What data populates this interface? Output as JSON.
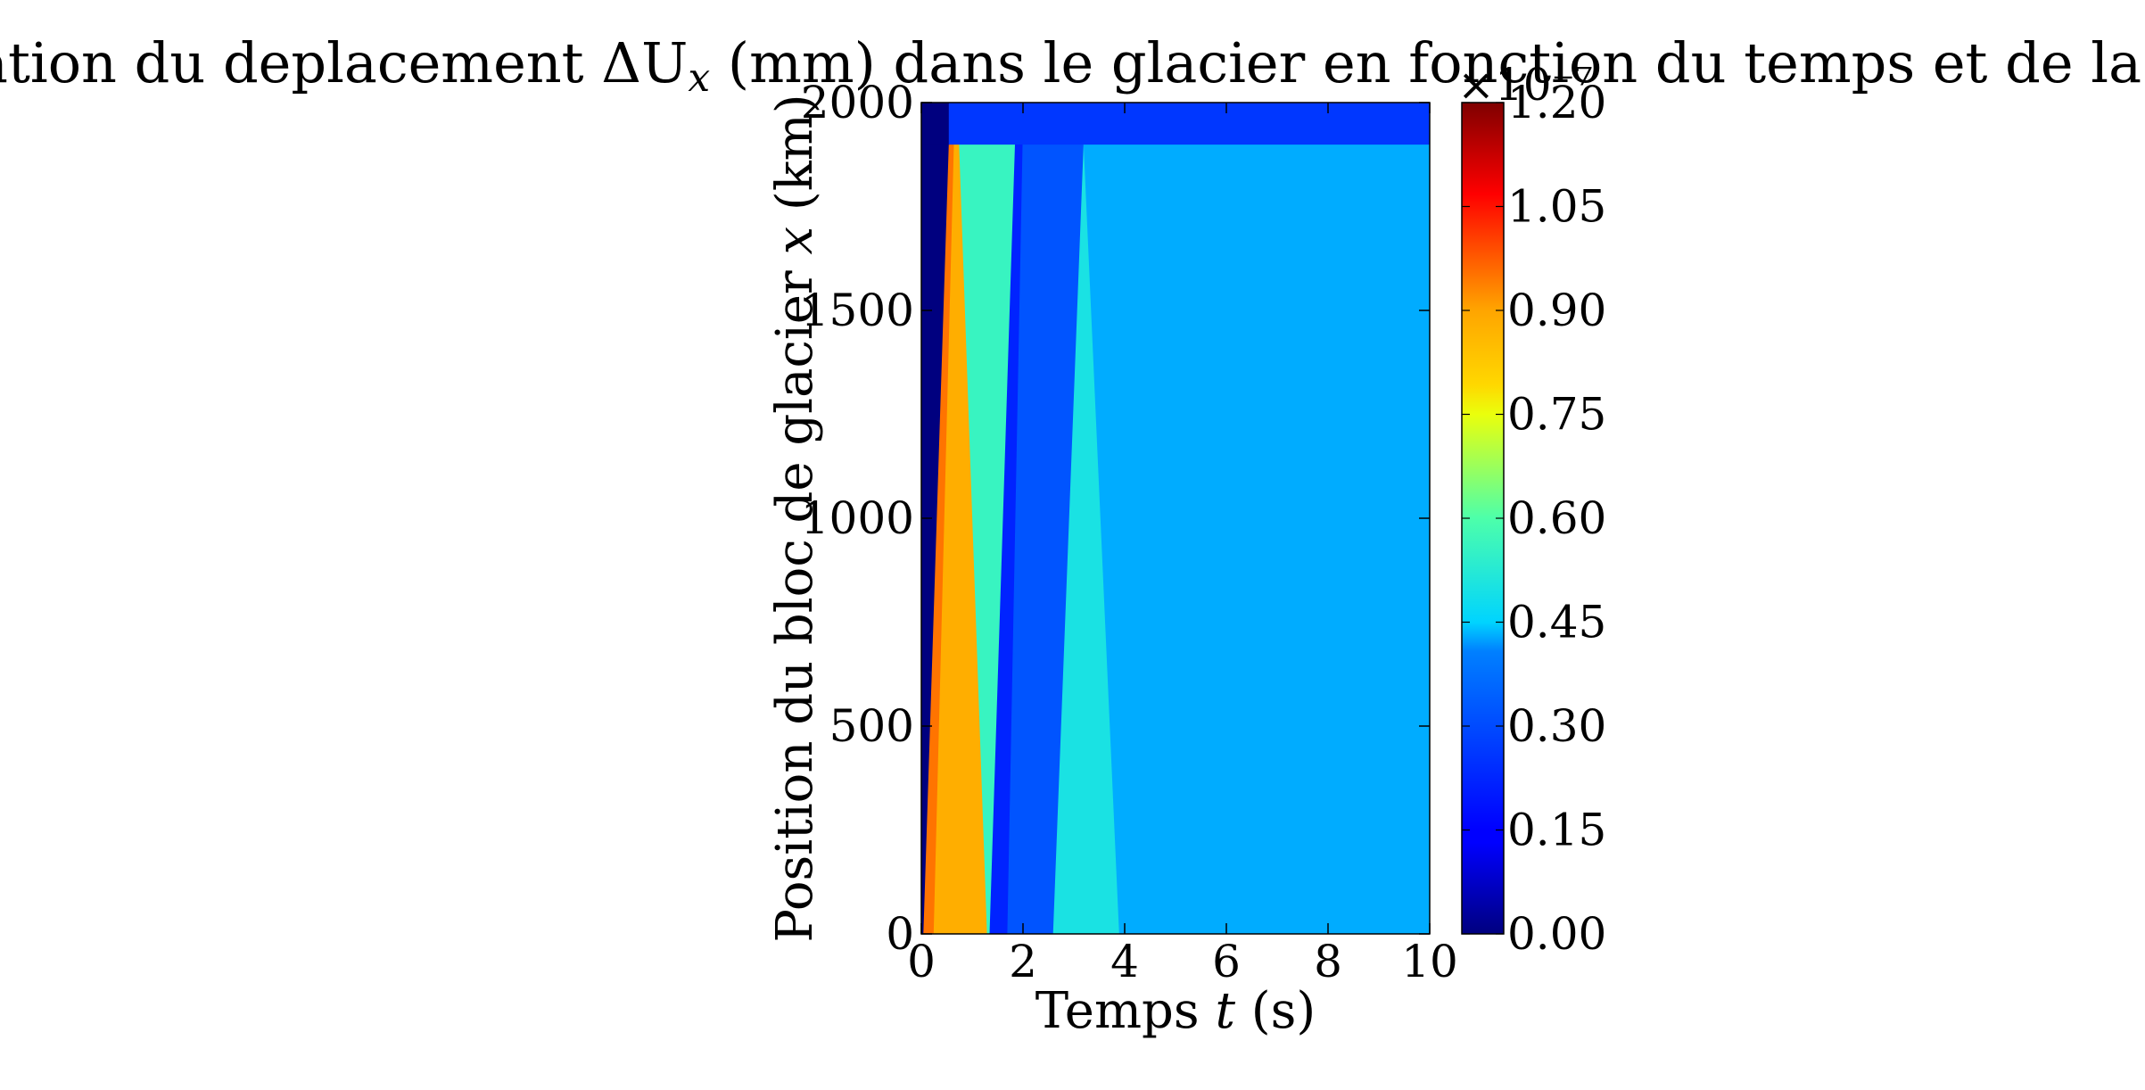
{
  "chart_data": {
    "type": "heatmap",
    "title": "Perturbation du deplacement ΔU",
    "title_subscript": "x",
    "title_tail": " (mm) dans le glacier en fonction du temps et de la position",
    "xlabel_prefix": "Temps ",
    "xlabel_var": "t",
    "xlabel_suffix": " (s)",
    "ylabel_prefix": "Position du bloc de glacier ",
    "ylabel_var": "x",
    "ylabel_suffix": " (km)",
    "xlim": [
      0,
      10
    ],
    "ylim": [
      0,
      2000
    ],
    "x_ticks": [
      0,
      2,
      4,
      6,
      8,
      10
    ],
    "x_tick_labels": [
      "0",
      "2",
      "4",
      "6",
      "8",
      "10"
    ],
    "y_ticks": [
      0,
      500,
      1000,
      1500,
      2000
    ],
    "y_tick_labels": [
      "0",
      "500",
      "1000",
      "1500",
      "2000"
    ],
    "colorbar": {
      "min": 0.0,
      "max": 1.2,
      "ticks": [
        0.0,
        0.15,
        0.3,
        0.45,
        0.6,
        0.75,
        0.9,
        1.05,
        1.2
      ],
      "tick_labels": [
        "0.00",
        "0.15",
        "0.30",
        "0.45",
        "0.60",
        "0.75",
        "0.90",
        "1.05",
        "1.20"
      ],
      "multiplier_label": "×10⁻⁷",
      "colormap": "jet"
    },
    "regions": [
      {
        "band": "x 0-1900 km",
        "t_start_x0": 0.0,
        "t_start_x1900": 0.0,
        "t_end_x0": 0.05,
        "t_end_x1900": 0.55,
        "value": 0.0
      },
      {
        "band": "x 0-1900 km",
        "t_start_x0": 0.05,
        "t_start_x1900": 0.55,
        "t_end_x0": 0.25,
        "t_end_x1900": 0.65,
        "value": 0.95
      },
      {
        "band": "x 0-1900 km",
        "t_start_x0": 0.25,
        "t_start_x1900": 0.65,
        "t_end_x0": 1.3,
        "t_end_x1900": 0.75,
        "value": 0.88
      },
      {
        "band": "x 0-1900 km",
        "t_start_x0": 1.3,
        "t_start_x1900": 0.75,
        "t_end_x0": 1.35,
        "t_end_x1900": 1.85,
        "value": 0.56
      },
      {
        "band": "x 0-1900 km",
        "t_start_x0": 1.35,
        "t_start_x1900": 1.85,
        "t_end_x0": 1.7,
        "t_end_x1900": 2.0,
        "value": 0.22
      },
      {
        "band": "x 0-1900 km",
        "t_start_x0": 1.7,
        "t_start_x1900": 2.0,
        "t_end_x0": 2.6,
        "t_end_x1900": 3.2,
        "value": 0.32
      },
      {
        "band": "x 0-1900 km",
        "t_start_x0": 2.6,
        "t_start_x1900": 3.2,
        "t_end_x0": 3.9,
        "t_end_x1900": 3.2,
        "value": 0.5
      },
      {
        "band": "x 0-1900 km",
        "t_start_x0": 3.9,
        "t_start_x1900": 3.2,
        "t_end_x0": 10.0,
        "t_end_x1900": 10.0,
        "value": 0.43
      },
      {
        "band": "x 1900-2000 km",
        "t_start": 0.0,
        "t_end": 0.55,
        "value": 0.0
      },
      {
        "band": "x 1900-2000 km",
        "t_start": 0.55,
        "t_end": 10.0,
        "value": 0.26
      }
    ]
  }
}
